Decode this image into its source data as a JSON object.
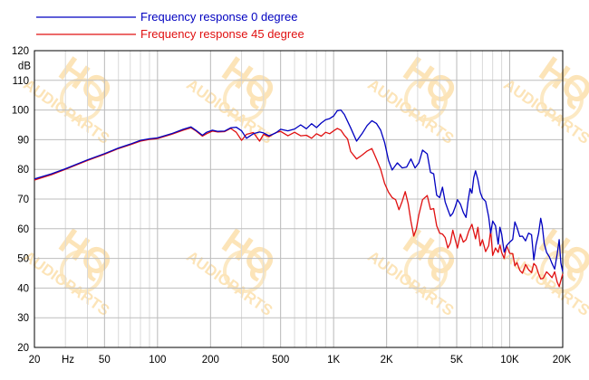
{
  "chart_data": {
    "type": "line",
    "x_scale": "log",
    "xlim": [
      20,
      20000
    ],
    "ylim": [
      20,
      120
    ],
    "grid": true,
    "legend_position": "top-left",
    "ylabel": "dB",
    "xlabel": "Hz",
    "x_ticks": [
      {
        "value": 20,
        "label": "20"
      },
      {
        "value": 50,
        "label": "50"
      },
      {
        "value": 100,
        "label": "100"
      },
      {
        "value": 200,
        "label": "200"
      },
      {
        "value": 500,
        "label": "500"
      },
      {
        "value": 1000,
        "label": "1K"
      },
      {
        "value": 2000,
        "label": "2K"
      },
      {
        "value": 5000,
        "label": "5K"
      },
      {
        "value": 10000,
        "label": "10K"
      },
      {
        "value": 20000,
        "label": "20K"
      }
    ],
    "y_ticks": [
      "20",
      "30",
      "40",
      "50",
      "60",
      "70",
      "80",
      "90",
      "100",
      "110",
      "120"
    ],
    "watermark": "HQ AUDIOPARTS",
    "series": [
      {
        "name": "Frequency response 0 degree",
        "color": "#0000c0",
        "points": [
          [
            20,
            76.8
          ],
          [
            25,
            78.5
          ],
          [
            30,
            80.2
          ],
          [
            40,
            83.2
          ],
          [
            50,
            85.3
          ],
          [
            60,
            87.2
          ],
          [
            70,
            88.5
          ],
          [
            80,
            89.8
          ],
          [
            90,
            90.3
          ],
          [
            100,
            90.6
          ],
          [
            120,
            92.0
          ],
          [
            140,
            93.5
          ],
          [
            155,
            94.3
          ],
          [
            165,
            93.2
          ],
          [
            180,
            91.5
          ],
          [
            190,
            92.5
          ],
          [
            205,
            93.2
          ],
          [
            220,
            92.8
          ],
          [
            240,
            92.9
          ],
          [
            260,
            94.0
          ],
          [
            280,
            94.2
          ],
          [
            300,
            93.0
          ],
          [
            320,
            90.5
          ],
          [
            350,
            92.0
          ],
          [
            380,
            92.6
          ],
          [
            400,
            92.3
          ],
          [
            430,
            91.3
          ],
          [
            470,
            92.3
          ],
          [
            500,
            93.5
          ],
          [
            550,
            93.0
          ],
          [
            600,
            93.6
          ],
          [
            650,
            95.0
          ],
          [
            700,
            93.7
          ],
          [
            750,
            95.4
          ],
          [
            800,
            94.1
          ],
          [
            850,
            95.6
          ],
          [
            900,
            96.7
          ],
          [
            950,
            97.1
          ],
          [
            1000,
            98.0
          ],
          [
            1050,
            99.8
          ],
          [
            1100,
            100.0
          ],
          [
            1150,
            98.5
          ],
          [
            1250,
            94.0
          ],
          [
            1350,
            89.5
          ],
          [
            1450,
            92.0
          ],
          [
            1550,
            94.8
          ],
          [
            1650,
            96.4
          ],
          [
            1750,
            95.5
          ],
          [
            1850,
            93.2
          ],
          [
            1950,
            89.0
          ],
          [
            2050,
            83.0
          ],
          [
            2150,
            79.8
          ],
          [
            2300,
            82.2
          ],
          [
            2450,
            80.5
          ],
          [
            2600,
            80.8
          ],
          [
            2750,
            83.5
          ],
          [
            2900,
            80.5
          ],
          [
            3050,
            82.2
          ],
          [
            3200,
            86.5
          ],
          [
            3400,
            85.2
          ],
          [
            3550,
            79.0
          ],
          [
            3700,
            78.5
          ],
          [
            3850,
            71.3
          ],
          [
            4000,
            70.5
          ],
          [
            4150,
            74.0
          ],
          [
            4300,
            69.0
          ],
          [
            4450,
            66.5
          ],
          [
            4600,
            64.2
          ],
          [
            4750,
            65.2
          ],
          [
            4900,
            67.3
          ],
          [
            5050,
            69.8
          ],
          [
            5250,
            68.3
          ],
          [
            5450,
            65.5
          ],
          [
            5650,
            63.8
          ],
          [
            5800,
            69.2
          ],
          [
            5950,
            73.5
          ],
          [
            6100,
            72.0
          ],
          [
            6250,
            77.2
          ],
          [
            6400,
            79.5
          ],
          [
            6600,
            76.5
          ],
          [
            6800,
            72.3
          ],
          [
            7000,
            70.3
          ],
          [
            7300,
            69.2
          ],
          [
            7600,
            64.0
          ],
          [
            7800,
            58.5
          ],
          [
            8000,
            62.6
          ],
          [
            8300,
            61.0
          ],
          [
            8600,
            54.8
          ],
          [
            8800,
            60.5
          ],
          [
            9000,
            58.2
          ],
          [
            9300,
            52.1
          ],
          [
            9600,
            54.3
          ],
          [
            10000,
            55.5
          ],
          [
            10400,
            56.4
          ],
          [
            10700,
            62.3
          ],
          [
            11000,
            60.5
          ],
          [
            11400,
            57.4
          ],
          [
            11800,
            57.5
          ],
          [
            12300,
            55.9
          ],
          [
            12800,
            58.5
          ],
          [
            13300,
            58.0
          ],
          [
            13700,
            49.5
          ],
          [
            14100,
            54.5
          ],
          [
            14600,
            58.5
          ],
          [
            15000,
            63.5
          ],
          [
            15300,
            61.0
          ],
          [
            15700,
            55.0
          ],
          [
            16200,
            52.0
          ],
          [
            16800,
            50.5
          ],
          [
            17400,
            48.3
          ],
          [
            18000,
            46.4
          ],
          [
            18600,
            51.5
          ],
          [
            19100,
            56.3
          ],
          [
            19500,
            48.5
          ],
          [
            20000,
            45.5
          ]
        ]
      },
      {
        "name": "Frequency response 45 degree",
        "color": "#e01010",
        "points": [
          [
            20,
            76.4
          ],
          [
            25,
            78.2
          ],
          [
            30,
            80.0
          ],
          [
            40,
            83.0
          ],
          [
            50,
            85.1
          ],
          [
            60,
            87.0
          ],
          [
            70,
            88.3
          ],
          [
            80,
            89.5
          ],
          [
            90,
            90.1
          ],
          [
            100,
            90.4
          ],
          [
            120,
            91.8
          ],
          [
            140,
            93.2
          ],
          [
            155,
            94.0
          ],
          [
            165,
            93.0
          ],
          [
            180,
            91.2
          ],
          [
            190,
            92.0
          ],
          [
            205,
            92.9
          ],
          [
            220,
            92.6
          ],
          [
            240,
            92.7
          ],
          [
            260,
            93.8
          ],
          [
            280,
            92.5
          ],
          [
            300,
            89.8
          ],
          [
            320,
            91.8
          ],
          [
            350,
            92.4
          ],
          [
            380,
            89.5
          ],
          [
            400,
            91.8
          ],
          [
            430,
            91.0
          ],
          [
            470,
            92.4
          ],
          [
            500,
            92.8
          ],
          [
            550,
            91.3
          ],
          [
            600,
            92.5
          ],
          [
            650,
            91.3
          ],
          [
            700,
            91.5
          ],
          [
            750,
            90.5
          ],
          [
            800,
            92.0
          ],
          [
            850,
            91.2
          ],
          [
            900,
            92.5
          ],
          [
            950,
            92.0
          ],
          [
            1000,
            93.0
          ],
          [
            1050,
            93.8
          ],
          [
            1100,
            93.2
          ],
          [
            1150,
            91.5
          ],
          [
            1200,
            90.2
          ],
          [
            1250,
            86.0
          ],
          [
            1350,
            83.5
          ],
          [
            1450,
            84.8
          ],
          [
            1550,
            86.2
          ],
          [
            1650,
            87.0
          ],
          [
            1750,
            83.5
          ],
          [
            1850,
            80.0
          ],
          [
            1950,
            75.2
          ],
          [
            2050,
            72.3
          ],
          [
            2150,
            70.5
          ],
          [
            2250,
            69.8
          ],
          [
            2350,
            66.4
          ],
          [
            2450,
            69.2
          ],
          [
            2550,
            72.5
          ],
          [
            2650,
            68.5
          ],
          [
            2750,
            62.5
          ],
          [
            2850,
            57.5
          ],
          [
            2950,
            60.0
          ],
          [
            3050,
            64.8
          ],
          [
            3200,
            69.8
          ],
          [
            3400,
            71.2
          ],
          [
            3550,
            66.5
          ],
          [
            3700,
            66.8
          ],
          [
            3850,
            61.0
          ],
          [
            4000,
            58.5
          ],
          [
            4150,
            58.2
          ],
          [
            4300,
            57.0
          ],
          [
            4450,
            53.5
          ],
          [
            4600,
            55.2
          ],
          [
            4750,
            59.5
          ],
          [
            4900,
            56.4
          ],
          [
            5050,
            53.5
          ],
          [
            5250,
            58.2
          ],
          [
            5450,
            55.5
          ],
          [
            5650,
            56.3
          ],
          [
            5850,
            59.2
          ],
          [
            6100,
            61.5
          ],
          [
            6400,
            56.6
          ],
          [
            6600,
            60.5
          ],
          [
            6800,
            54.2
          ],
          [
            7000,
            56.3
          ],
          [
            7300,
            52.3
          ],
          [
            7600,
            54.3
          ],
          [
            7800,
            59.5
          ],
          [
            8000,
            51.0
          ],
          [
            8300,
            53.5
          ],
          [
            8600,
            52.0
          ],
          [
            8800,
            54.5
          ],
          [
            9000,
            52.0
          ],
          [
            9300,
            50.0
          ],
          [
            9600,
            54.3
          ],
          [
            10000,
            51.7
          ],
          [
            10400,
            51.6
          ],
          [
            10700,
            47.5
          ],
          [
            11000,
            48.6
          ],
          [
            11400,
            46.0
          ],
          [
            11800,
            45.0
          ],
          [
            12300,
            48.0
          ],
          [
            12800,
            46.2
          ],
          [
            13300,
            45.2
          ],
          [
            13700,
            48.3
          ],
          [
            14100,
            47.5
          ],
          [
            14600,
            44.8
          ],
          [
            15000,
            43.1
          ],
          [
            15500,
            43.3
          ],
          [
            16200,
            45.5
          ],
          [
            16800,
            44.5
          ],
          [
            17400,
            43.5
          ],
          [
            18000,
            45.5
          ],
          [
            18600,
            42.0
          ],
          [
            19100,
            40.5
          ],
          [
            19500,
            42.5
          ],
          [
            20000,
            44.8
          ]
        ]
      }
    ]
  }
}
